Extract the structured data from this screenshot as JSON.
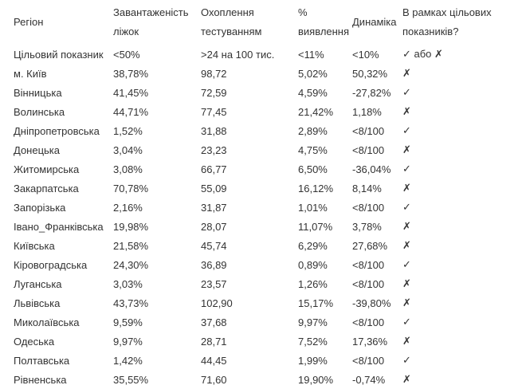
{
  "table": {
    "headers": [
      [
        "Регіон"
      ],
      [
        "Завантаженість",
        "ліжок"
      ],
      [
        "Охоплення",
        "тестуванням"
      ],
      [
        "%",
        "виявлення"
      ],
      [
        "Динаміка"
      ],
      [
        "В рамках цільових",
        "показників?"
      ]
    ],
    "rows": [
      [
        "Цільовий показник",
        "<50%",
        ">24 на 100 тис.",
        "<11%",
        "<10%",
        "✓ або ✗"
      ],
      [
        "м. Київ",
        "38,78%",
        "98,72",
        "5,02%",
        "50,32%",
        "✗"
      ],
      [
        "Вінницька",
        "41,45%",
        "72,59",
        "4,59%",
        "-27,82%",
        "✓"
      ],
      [
        "Волинська",
        "44,71%",
        "77,45",
        "21,42%",
        "1,18%",
        "✗"
      ],
      [
        "Дніпропетровська",
        "1,52%",
        "31,88",
        "2,89%",
        "<8/100",
        "✓"
      ],
      [
        "Донецька",
        "3,04%",
        "23,23",
        "4,75%",
        "<8/100",
        "✗"
      ],
      [
        "Житомирська",
        "3,08%",
        "66,77",
        "6,50%",
        "-36,04%",
        "✓"
      ],
      [
        "Закарпатська",
        "70,78%",
        "55,09",
        "16,12%",
        "8,14%",
        "✗"
      ],
      [
        "Запорізька",
        "2,16%",
        "31,87",
        "1,01%",
        "<8/100",
        "✓"
      ],
      [
        "Івано_Франківська",
        "19,98%",
        "28,07",
        "11,07%",
        "3,78%",
        "✗"
      ],
      [
        "Київська",
        "21,58%",
        "45,74",
        "6,29%",
        "27,68%",
        "✗"
      ],
      [
        "Кіровоградська",
        "24,30%",
        "36,89",
        "0,89%",
        "<8/100",
        "✓"
      ],
      [
        "Луганська",
        "3,03%",
        "23,57",
        "1,26%",
        "<8/100",
        "✗"
      ],
      [
        "Львівська",
        "43,73%",
        "102,90",
        "15,17%",
        "-39,80%",
        "✗"
      ],
      [
        "Миколаївська",
        "9,59%",
        "37,68",
        "9,97%",
        "<8/100",
        "✓"
      ],
      [
        "Одеська",
        "9,97%",
        "28,71",
        "7,52%",
        "17,36%",
        "✗"
      ],
      [
        "Полтавська",
        "1,42%",
        "44,45",
        "1,99%",
        "<8/100",
        "✓"
      ],
      [
        "Рівненська",
        "35,55%",
        "71,60",
        "19,90%",
        "-0,74%",
        "✗"
      ]
    ]
  }
}
